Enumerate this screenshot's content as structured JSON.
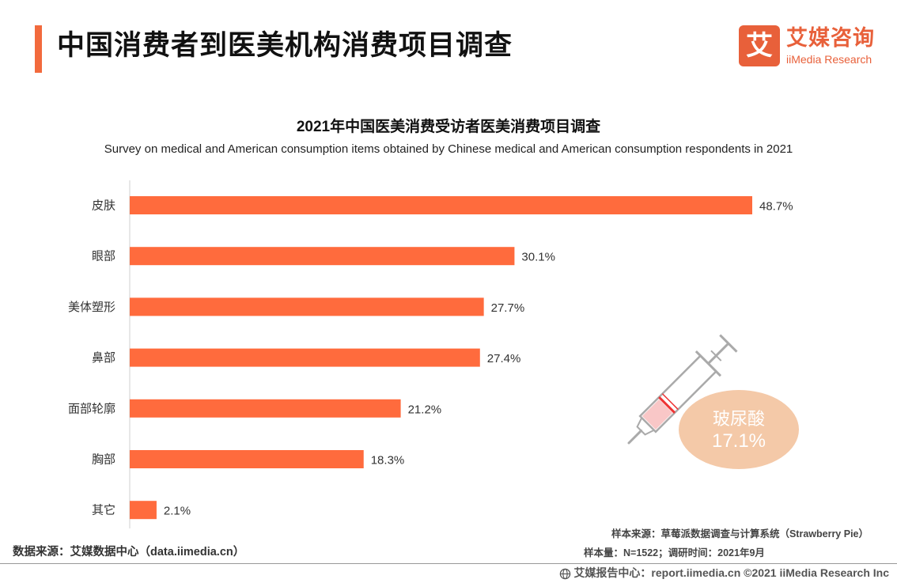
{
  "header": {
    "title": "中国消费者到医美机构消费项目调查"
  },
  "logo": {
    "mark": "艾",
    "name_cn": "艾媒咨询",
    "name_en": "iiMedia Research"
  },
  "colors": {
    "bar": "#ff6b3d",
    "accent": "#f26a3d",
    "badge": "#f4c9a8"
  },
  "chart_data": {
    "type": "bar",
    "orientation": "horizontal",
    "title": "2021年中国医美消费受访者医美消费项目调查",
    "subtitle": "Survey on medical and American consumption items obtained by Chinese medical and American consumption respondents in 2021",
    "categories": [
      "皮肤",
      "眼部",
      "美体塑形",
      "鼻部",
      "面部轮廓",
      "胸部",
      "其它"
    ],
    "values": [
      48.7,
      30.1,
      27.7,
      27.4,
      21.2,
      18.3,
      2.1
    ],
    "value_labels": [
      "48.7%",
      "30.1%",
      "27.7%",
      "27.4%",
      "21.2%",
      "18.3%",
      "2.1%"
    ],
    "xlabel": "",
    "ylabel": "",
    "xlim": [
      0,
      50
    ],
    "grid": false,
    "annotation": {
      "label": "玻尿酸",
      "value": 17.1,
      "value_label": "17.1%",
      "icon": "syringe-icon"
    }
  },
  "footer": {
    "source": "数据来源：艾媒数据中心（data.iimedia.cn）",
    "sample_source": "样本来源：草莓派数据调查与计算系统（Strawberry Pie）",
    "sample_size": "样本量：N=1522；调研时间：2021年9月",
    "copyright": "艾媒报告中心：report.iimedia.cn   ©2021  iiMedia Research  Inc",
    "globe_icon": "globe-icon"
  }
}
